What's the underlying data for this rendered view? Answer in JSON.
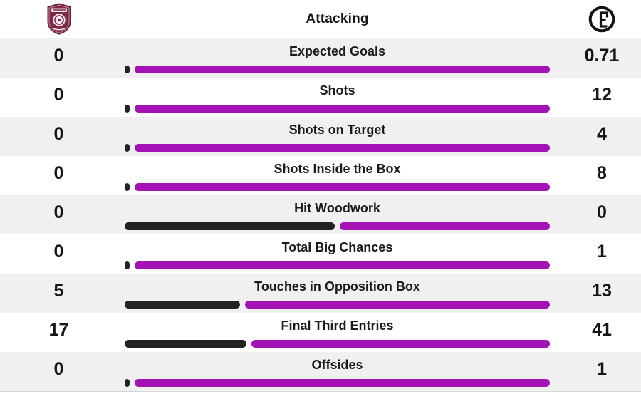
{
  "header": {
    "title": "Attacking",
    "home_logo_icon": "cfr-cluj-crest-icon",
    "away_logo_icon": "fc-lugano-crest-icon"
  },
  "colors": {
    "home_bar": "#232323",
    "away_bar": "#A312B5",
    "row_alt_bg": "#F0F0F0",
    "home_crest_maroon": "#7D2847",
    "away_crest_black": "#141414"
  },
  "chart_data": {
    "type": "bar",
    "title": "Attacking",
    "orientation": "horizontal-split-comparison",
    "legend_position": "none",
    "categories": [
      "Expected Goals",
      "Shots",
      "Shots on Target",
      "Shots Inside the Box",
      "Hit Woodwork",
      "Total Big Chances",
      "Touches in Opposition Box",
      "Final Third Entries",
      "Offsides"
    ],
    "series": [
      {
        "name": "home",
        "display": [
          "0",
          "0",
          "0",
          "0",
          "0",
          "0",
          "5",
          "17",
          "0"
        ],
        "values": [
          0,
          0,
          0,
          0,
          0,
          0,
          5,
          17,
          0
        ]
      },
      {
        "name": "away",
        "display": [
          "0.71",
          "12",
          "4",
          "8",
          "0",
          "1",
          "13",
          "41",
          "1"
        ],
        "values": [
          0.71,
          12,
          4,
          8,
          0,
          1,
          13,
          41,
          1
        ]
      }
    ]
  }
}
